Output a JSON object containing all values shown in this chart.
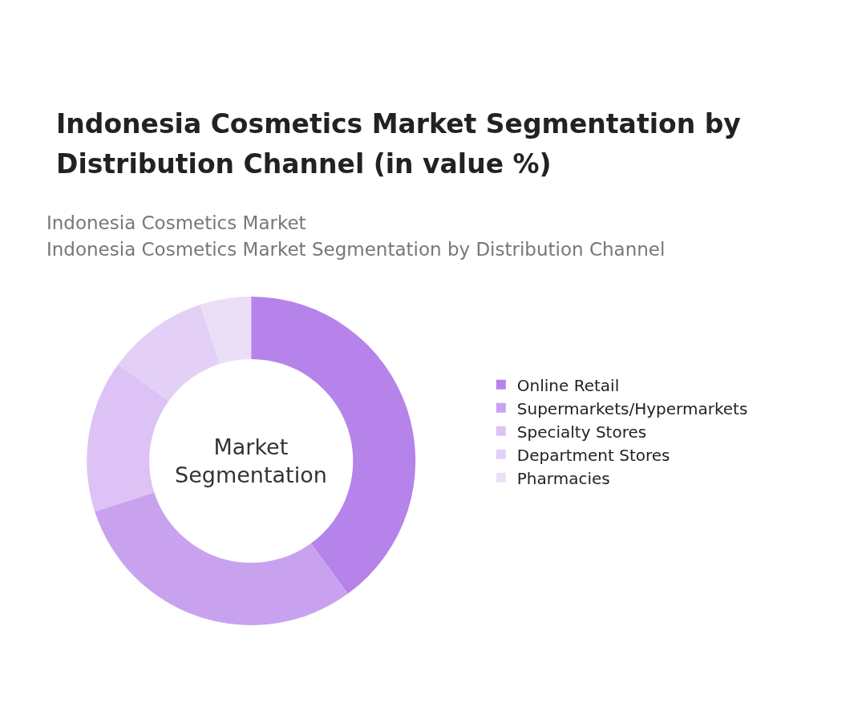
{
  "chart_data": {
    "type": "donut",
    "title": "Indonesia Cosmetics Market Segmentation by Distribution Channel (in value %)",
    "subtitle": "Indonesia Cosmetics Market\nIndonesia Cosmetics Market Segmentation by Distribution Channel",
    "annotations": [
      "Market\nSegmentation"
    ],
    "categories": [
      "Online Retail",
      "Supermarkets/Hypermarkets",
      "Specialty Stores",
      "Department Stores",
      "Pharmacies"
    ],
    "values": [
      40,
      30,
      15,
      10,
      5
    ],
    "colors": [
      "#b583ea",
      "#c9a2ef",
      "#dcc2f5",
      "#e4d0f7",
      "#ebdff8"
    ],
    "legend": "right"
  }
}
